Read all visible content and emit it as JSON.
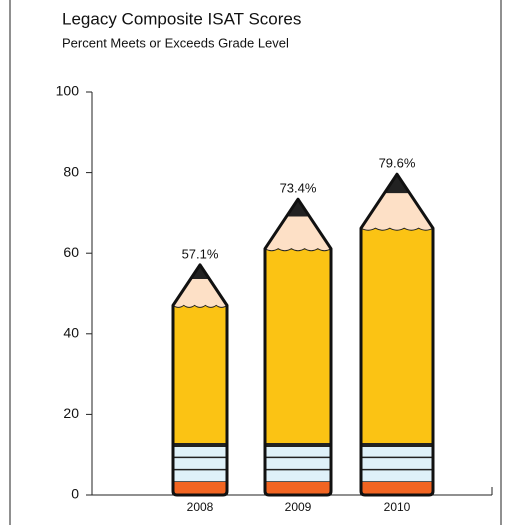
{
  "chart_data": {
    "type": "bar",
    "title": "Legacy Composite ISAT Scores",
    "subtitle": "Percent Meets or Exceeds Grade Level",
    "categories": [
      "2008",
      "2009",
      "2010"
    ],
    "values": [
      57.1,
      73.4,
      79.6
    ],
    "value_labels": [
      "57.1%",
      "73.4%",
      "79.6%"
    ],
    "color": "#fbc314",
    "ylim": [
      0,
      100
    ],
    "yticks": [
      0,
      20,
      40,
      60,
      80,
      100
    ]
  }
}
